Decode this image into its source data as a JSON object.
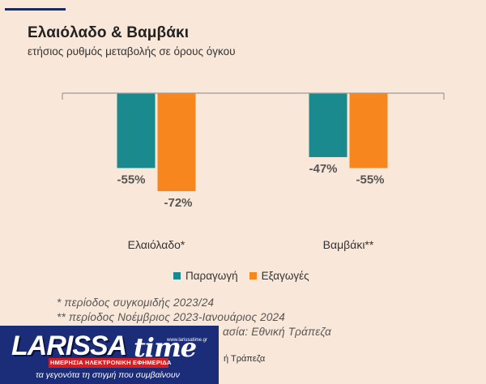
{
  "title": "Ελαιόλαδο & Βαμβάκι",
  "subtitle": "ετήσιος ρυθμός μεταβολής σε όρους όγκου",
  "chart_data": {
    "type": "bar",
    "categories": [
      "Ελαιόλαδο*",
      "Βαμβάκι**"
    ],
    "series": [
      {
        "name": "Παραγωγή",
        "values": [
          -55,
          -47
        ],
        "labels": [
          "-55%",
          "-47%"
        ],
        "color": "#1b8a8e"
      },
      {
        "name": "Εξαγωγές",
        "values": [
          -72,
          -55
        ],
        "labels": [
          "-72%",
          "-55%"
        ],
        "color": "#f7861e"
      }
    ],
    "ylim": [
      -100,
      0
    ],
    "grid": false,
    "legend": "bottom"
  },
  "notes": [
    "* περίοδος συγκομιδής 2023/24",
    "** περίοδος Νοέμβριος 2023-Ιανουάριος 2024",
    "ασία: Εθνική Τράπεζα"
  ],
  "source_fragment": "ή Τράπεζα",
  "logo": {
    "wordmark": "LARISSA",
    "wordmark_suffix": "time",
    "url": "www.larissatime.gr",
    "band": "ΗΜΕΡΗΣΙΑ ΗΛΕΚΤΡΟΝΙΚΗ ΕΦΗΜΕΡΙΔΑ",
    "slogan": "τα γεγονότα τη στιγμή που συμβαίνουν"
  }
}
